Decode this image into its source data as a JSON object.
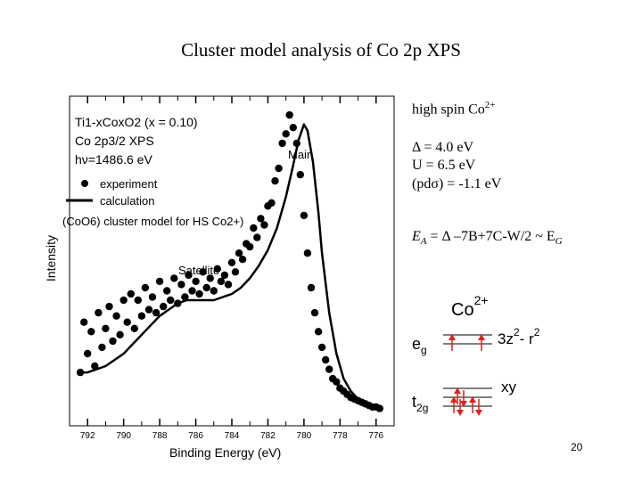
{
  "slide": {
    "title": "Cluster model analysis of Co 2p XPS",
    "page_number": "20"
  },
  "chart_data": {
    "type": "scatter",
    "xlabel": "Binding Energy (eV)",
    "ylabel": "Intensity",
    "x_reversed": true,
    "xlim": [
      793,
      775
    ],
    "ylim": [
      0,
      1.05
    ],
    "x_ticks": [
      "792",
      "790",
      "788",
      "786",
      "784",
      "782",
      "780",
      "778",
      "776"
    ],
    "info_lines": {
      "sample": "Ti1-xCoxO2 (x = 0.10)",
      "line": "Co 2p3/2 XPS",
      "photon": "hν=1486.6 eV"
    },
    "legend": {
      "experiment": "experiment",
      "calculation": "calculation",
      "cluster_model": "(CoO6) cluster model for HS Co2+)"
    },
    "annotations": {
      "main": "Main",
      "satellite": "Satellite"
    },
    "series": [
      {
        "name": "experiment",
        "marker": "filled-circle",
        "x": [
          792.4,
          792.2,
          792.0,
          791.8,
          791.6,
          791.4,
          791.2,
          791.0,
          790.8,
          790.6,
          790.4,
          790.2,
          790.0,
          789.8,
          789.6,
          789.4,
          789.2,
          789.0,
          788.8,
          788.6,
          788.4,
          788.2,
          788.0,
          787.8,
          787.6,
          787.4,
          787.2,
          787.0,
          786.8,
          786.6,
          786.4,
          786.2,
          786.0,
          785.8,
          785.6,
          785.4,
          785.2,
          785.0,
          784.8,
          784.6,
          784.4,
          784.2,
          784.0,
          783.8,
          783.6,
          783.4,
          783.2,
          783.0,
          782.8,
          782.6,
          782.4,
          782.2,
          782.0,
          781.8,
          781.6,
          781.4,
          781.2,
          781.0,
          780.8,
          780.6,
          780.4,
          780.2,
          780.0,
          779.8,
          779.6,
          779.4,
          779.2,
          779.0,
          778.8,
          778.6,
          778.4,
          778.2,
          778.0,
          777.8,
          777.6,
          777.4,
          777.2,
          777.0,
          776.8,
          776.6,
          776.4,
          776.2,
          776.0,
          775.8
        ],
        "y": [
          0.17,
          0.33,
          0.23,
          0.3,
          0.19,
          0.36,
          0.25,
          0.31,
          0.38,
          0.27,
          0.35,
          0.29,
          0.4,
          0.33,
          0.42,
          0.31,
          0.4,
          0.35,
          0.44,
          0.37,
          0.41,
          0.36,
          0.46,
          0.38,
          0.43,
          0.4,
          0.47,
          0.39,
          0.45,
          0.41,
          0.48,
          0.43,
          0.46,
          0.42,
          0.49,
          0.44,
          0.47,
          0.43,
          0.5,
          0.46,
          0.48,
          0.45,
          0.52,
          0.49,
          0.55,
          0.53,
          0.58,
          0.57,
          0.63,
          0.6,
          0.66,
          0.64,
          0.7,
          0.71,
          0.78,
          0.82,
          0.9,
          0.93,
          0.99,
          0.95,
          0.9,
          0.8,
          0.67,
          0.55,
          0.44,
          0.36,
          0.3,
          0.25,
          0.21,
          0.18,
          0.15,
          0.14,
          0.12,
          0.11,
          0.1,
          0.09,
          0.085,
          0.08,
          0.075,
          0.07,
          0.065,
          0.06,
          0.06,
          0.055
        ]
      },
      {
        "name": "calculation",
        "marker": "line",
        "x": [
          792.4,
          792.0,
          791.5,
          791.0,
          790.5,
          790.0,
          789.5,
          789.0,
          788.5,
          788.0,
          787.5,
          787.0,
          786.5,
          786.0,
          785.5,
          785.0,
          784.5,
          784.0,
          783.5,
          783.0,
          782.5,
          782.0,
          781.5,
          781.0,
          780.6,
          780.3,
          780.0,
          779.8,
          779.5,
          779.2,
          779.0,
          778.6,
          778.2,
          777.8,
          777.4,
          777.0,
          776.6,
          776.2,
          775.8
        ],
        "y": [
          0.17,
          0.17,
          0.18,
          0.19,
          0.21,
          0.23,
          0.26,
          0.29,
          0.32,
          0.35,
          0.37,
          0.39,
          0.4,
          0.4,
          0.4,
          0.4,
          0.41,
          0.42,
          0.44,
          0.47,
          0.51,
          0.56,
          0.63,
          0.73,
          0.83,
          0.91,
          0.96,
          0.94,
          0.84,
          0.68,
          0.55,
          0.36,
          0.23,
          0.15,
          0.11,
          0.085,
          0.07,
          0.06,
          0.055
        ]
      }
    ]
  },
  "parameters": {
    "spin_state": "high spin Co",
    "spin_sup": "2+",
    "delta": "Δ = 4.0 eV",
    "u": "U = 6.5 eV",
    "pd_sigma": "(pdσ) = -1.1 eV",
    "ea_lhs_main": "E",
    "ea_lhs_sub": "A",
    "ea_mid": " = Δ –7B+7C-W/2 ~ E",
    "ea_rhs_sub": "G"
  },
  "diagram": {
    "ion": "Co",
    "ion_sup": "2+",
    "eg_main": "e",
    "eg_sub": "g",
    "t2g_main": "t",
    "t2g_sub": "2g",
    "orb_eg": "3z",
    "orb_eg_sup1": "2",
    "orb_eg_mid": "- r",
    "orb_eg_sup2": "2",
    "orb_t2g": "xy",
    "arrow_color": "#e0201b"
  }
}
